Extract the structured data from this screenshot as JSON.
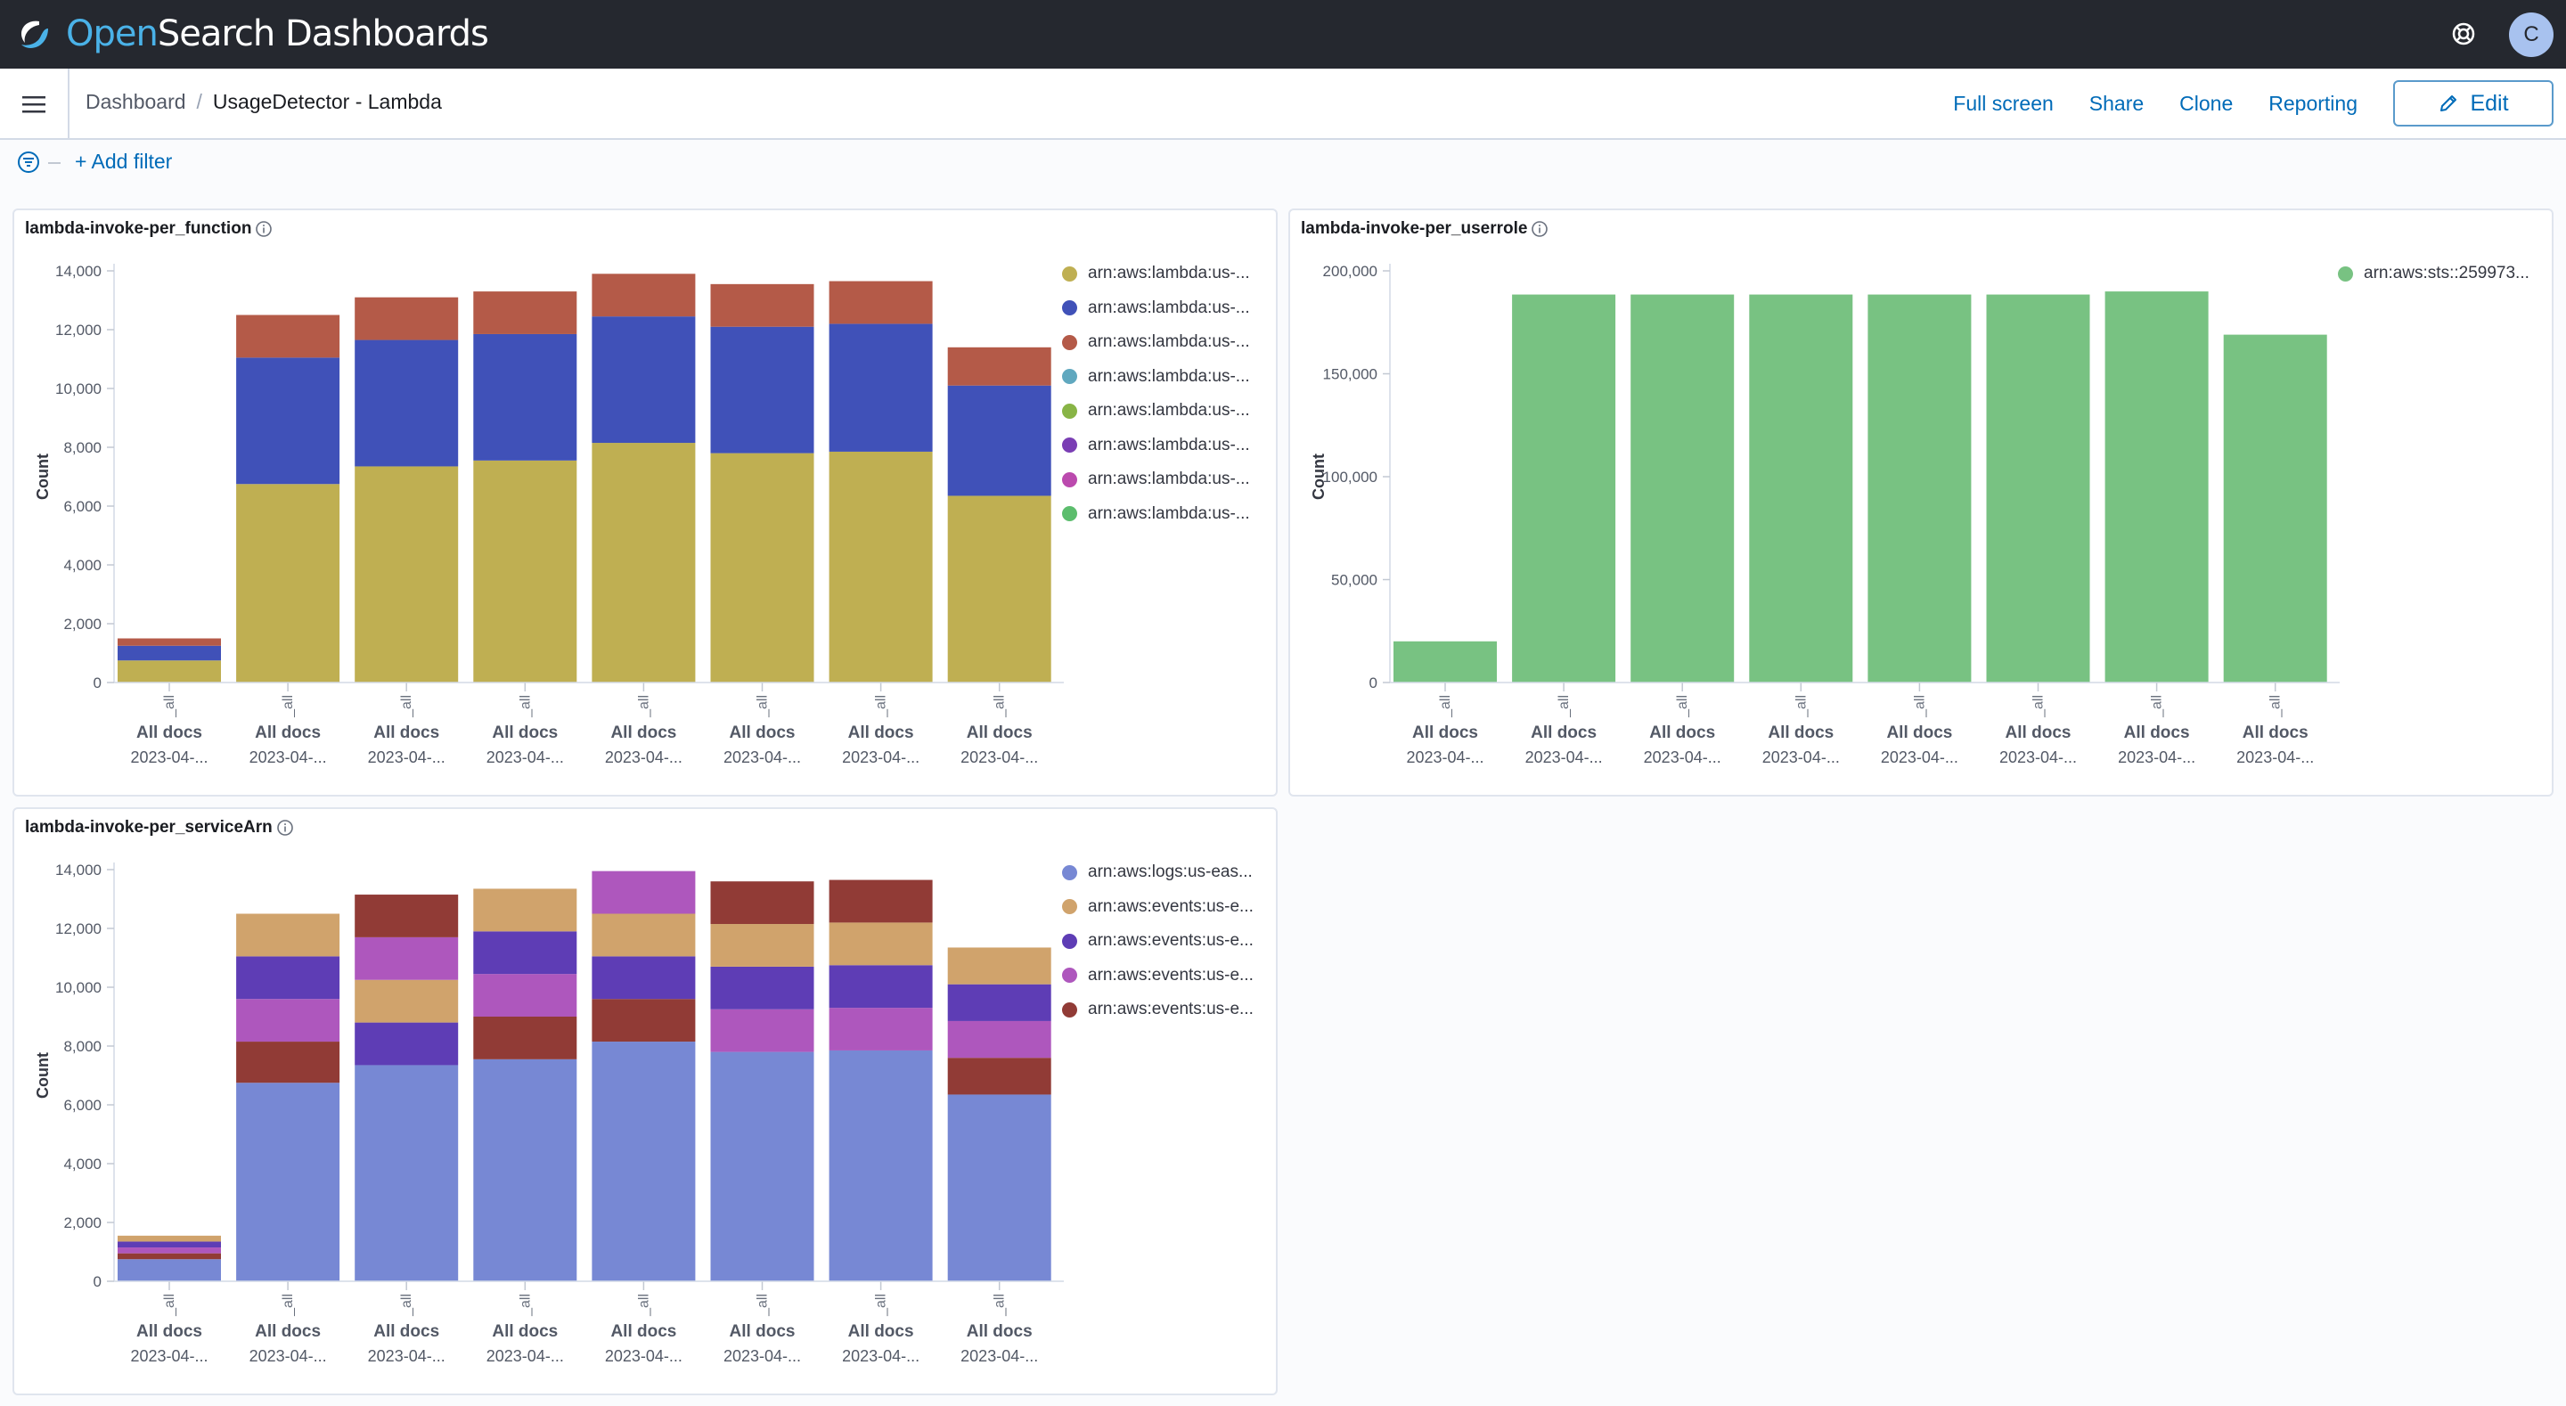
{
  "app": {
    "logo_prefix": "Open",
    "logo_suffix": "Search Dashboards",
    "avatar_initial": "C"
  },
  "breadcrumbs": {
    "root": "Dashboard",
    "separator": "/",
    "current": "UsageDetector - Lambda"
  },
  "actions": {
    "full_screen": "Full screen",
    "share": "Share",
    "clone": "Clone",
    "reporting": "Reporting",
    "edit": "Edit"
  },
  "filter": {
    "add_filter": "+ Add filter"
  },
  "colors": {
    "header_bg": "#25282f",
    "link": "#006bb8"
  },
  "panels": [
    {
      "title": "lambda-invoke-per_function",
      "legend": [
        {
          "label": "arn:aws:lambda:us-...",
          "color": "#bfaf52"
        },
        {
          "label": "arn:aws:lambda:us-...",
          "color": "#4051b8"
        },
        {
          "label": "arn:aws:lambda:us-...",
          "color": "#b45a48"
        },
        {
          "label": "arn:aws:lambda:us-...",
          "color": "#60a8bf"
        },
        {
          "label": "arn:aws:lambda:us-...",
          "color": "#88b446"
        },
        {
          "label": "arn:aws:lambda:us-...",
          "color": "#7a3eb4"
        },
        {
          "label": "arn:aws:lambda:us-...",
          "color": "#bb4aae"
        },
        {
          "label": "arn:aws:lambda:us-...",
          "color": "#5cbd6d"
        }
      ]
    },
    {
      "title": "lambda-invoke-per_userrole",
      "legend": [
        {
          "label": "arn:aws:sts::259973...",
          "color": "#78c282"
        }
      ]
    },
    {
      "title": "lambda-invoke-per_serviceArn",
      "legend": [
        {
          "label": "arn:aws:logs:us-eas...",
          "color": "#7788d4"
        },
        {
          "label": "arn:aws:events:us-e...",
          "color": "#d0a36c"
        },
        {
          "label": "arn:aws:events:us-e...",
          "color": "#5e3db5"
        },
        {
          "label": "arn:aws:events:us-e...",
          "color": "#ae57bd"
        },
        {
          "label": "arn:aws:events:us-e...",
          "color": "#913b36"
        }
      ]
    }
  ],
  "chart_data": [
    {
      "type": "bar",
      "title": "lambda-invoke-per_function",
      "ylabel": "Count",
      "xlabel": "",
      "ylim": [
        0,
        14000
      ],
      "yticks": [
        "0",
        "2,000",
        "4,000",
        "6,000",
        "8,000",
        "10,000",
        "12,000",
        "14,000"
      ],
      "ytick_values": [
        0,
        2000,
        4000,
        6000,
        8000,
        10000,
        12000,
        14000
      ],
      "stacked": true,
      "categories": [
        "All docs",
        "All docs",
        "All docs",
        "All docs",
        "All docs",
        "All docs",
        "All docs",
        "All docs"
      ],
      "category_axis_label": "_all",
      "dates": [
        "2023-04-...",
        "2023-04-...",
        "2023-04-...",
        "2023-04-...",
        "2023-04-...",
        "2023-04-...",
        "2023-04-...",
        "2023-04-..."
      ],
      "series": [
        {
          "color": "#bfaf52",
          "values": [
            750,
            6750,
            7350,
            7550,
            8150,
            7800,
            7850,
            6350
          ]
        },
        {
          "color": "#4051b8",
          "values": [
            500,
            4300,
            4300,
            4300,
            4300,
            4300,
            4350,
            3750
          ]
        },
        {
          "color": "#b45a48",
          "values": [
            250,
            1450,
            1450,
            1450,
            1450,
            1450,
            1450,
            1300
          ]
        }
      ]
    },
    {
      "type": "bar",
      "title": "lambda-invoke-per_userrole",
      "ylabel": "Count",
      "xlabel": "",
      "ylim": [
        0,
        200000
      ],
      "yticks": [
        "0",
        "50,000",
        "100,000",
        "150,000",
        "200,000"
      ],
      "ytick_values": [
        0,
        50000,
        100000,
        150000,
        200000
      ],
      "stacked": true,
      "categories": [
        "All docs",
        "All docs",
        "All docs",
        "All docs",
        "All docs",
        "All docs",
        "All docs",
        "All docs"
      ],
      "category_axis_label": "_all",
      "dates": [
        "2023-04-...",
        "2023-04-...",
        "2023-04-...",
        "2023-04-...",
        "2023-04-...",
        "2023-04-...",
        "2023-04-...",
        "2023-04-..."
      ],
      "series": [
        {
          "color": "#78c282",
          "values": [
            20000,
            188500,
            188500,
            188500,
            188500,
            188500,
            190000,
            169000
          ]
        }
      ]
    },
    {
      "type": "bar",
      "title": "lambda-invoke-per_serviceArn",
      "ylabel": "Count",
      "xlabel": "",
      "ylim": [
        0,
        14000
      ],
      "yticks": [
        "0",
        "2,000",
        "4,000",
        "6,000",
        "8,000",
        "10,000",
        "12,000",
        "14,000"
      ],
      "ytick_values": [
        0,
        2000,
        4000,
        6000,
        8000,
        10000,
        12000,
        14000
      ],
      "stacked": true,
      "categories": [
        "All docs",
        "All docs",
        "All docs",
        "All docs",
        "All docs",
        "All docs",
        "All docs",
        "All docs"
      ],
      "category_axis_label": "_all",
      "dates": [
        "2023-04-...",
        "2023-04-...",
        "2023-04-...",
        "2023-04-...",
        "2023-04-...",
        "2023-04-...",
        "2023-04-...",
        "2023-04-..."
      ],
      "series": [
        {
          "color": "#7788d4",
          "values": [
            750,
            6750,
            7350,
            7550,
            8150,
            7800,
            7850,
            6350
          ]
        },
        {
          "color": "#913b36",
          "values": [
            200,
            1400,
            0,
            1450,
            1450,
            0,
            0,
            1250
          ]
        },
        {
          "color": "#ae57bd",
          "values": [
            200,
            1450,
            0,
            1450,
            0,
            1450,
            1450,
            1250
          ]
        },
        {
          "color": "#5e3db5",
          "values": [
            200,
            1450,
            1450,
            1450,
            1450,
            1450,
            1450,
            1250
          ]
        },
        {
          "color": "#d0a36c",
          "values": [
            200,
            1450,
            1450,
            1450,
            1450,
            1450,
            1450,
            1250
          ]
        },
        {
          "color": "#ae57bd",
          "values": [
            0,
            0,
            1450,
            0,
            1450,
            0,
            0,
            0
          ]
        },
        {
          "color": "#913b36",
          "values": [
            0,
            0,
            1450,
            0,
            0,
            1450,
            1450,
            0
          ]
        }
      ]
    }
  ]
}
